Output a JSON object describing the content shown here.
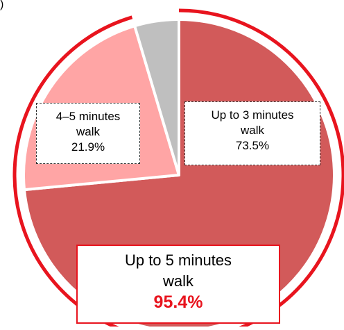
{
  "corner_text": ")",
  "chart_data": {
    "type": "pie",
    "title": "",
    "start_angle_deg": 0,
    "direction": "clockwise",
    "slices": [
      {
        "label_line1": "Up to 3 minutes",
        "label_line2": "walk",
        "value": 73.5,
        "value_label": "73.5%",
        "color": "#d25a5a"
      },
      {
        "label_line1": "4–5 minutes",
        "label_line2": "walk",
        "value": 21.9,
        "value_label": "21.9%",
        "color": "#ffa5a5"
      },
      {
        "label_line1": "",
        "label_line2": "",
        "value": 4.6,
        "value_label": "",
        "color": "#bfbfbf"
      }
    ],
    "cumulative": {
      "label_line1": "Up to 5 minutes",
      "label_line2": "walk",
      "value": 95.4,
      "value_label": "95.4%",
      "color": "#e8141e"
    }
  }
}
